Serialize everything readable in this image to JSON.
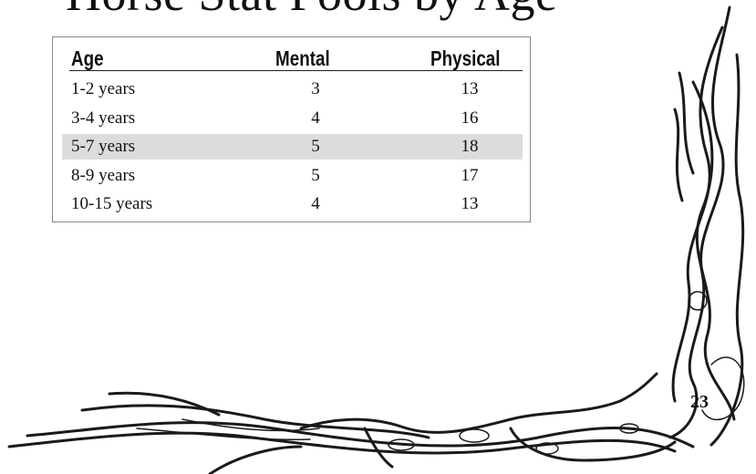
{
  "header": {
    "title": "Horse Stat Pools by Age"
  },
  "table": {
    "columns": [
      "Age",
      "Mental",
      "Physical"
    ],
    "rows": [
      [
        "1-2 years",
        3,
        13
      ],
      [
        "3-4 years",
        4,
        16
      ],
      [
        "5-7 years",
        5,
        18
      ],
      [
        "8-9 years",
        5,
        17
      ],
      [
        "10-15 years",
        4,
        13
      ]
    ]
  },
  "page_number": "23"
}
